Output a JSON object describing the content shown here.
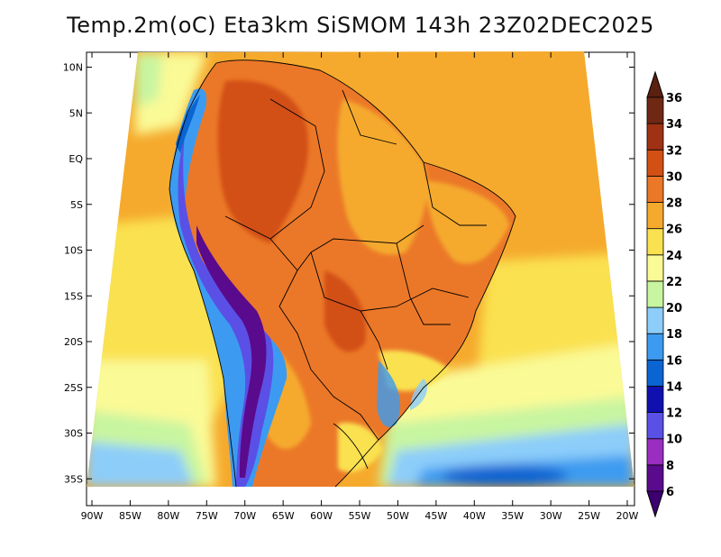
{
  "title": "Temp.2m(oC) Eta3km SiSMOM 143h 23Z02DEC2025",
  "map": {
    "lat_ticks": [
      {
        "label": "10N",
        "lat": 10
      },
      {
        "label": "5N",
        "lat": 5
      },
      {
        "label": "EQ",
        "lat": 0
      },
      {
        "label": "5S",
        "lat": -5
      },
      {
        "label": "10S",
        "lat": -10
      },
      {
        "label": "15S",
        "lat": -15
      },
      {
        "label": "20S",
        "lat": -20
      },
      {
        "label": "25S",
        "lat": -25
      },
      {
        "label": "30S",
        "lat": -30
      },
      {
        "label": "35S",
        "lat": -35
      }
    ],
    "lon_ticks": [
      {
        "label": "90W",
        "lon": -90
      },
      {
        "label": "85W",
        "lon": -85
      },
      {
        "label": "80W",
        "lon": -80
      },
      {
        "label": "75W",
        "lon": -75
      },
      {
        "label": "70W",
        "lon": -70
      },
      {
        "label": "65W",
        "lon": -65
      },
      {
        "label": "60W",
        "lon": -60
      },
      {
        "label": "55W",
        "lon": -55
      },
      {
        "label": "50W",
        "lon": -50
      },
      {
        "label": "45W",
        "lon": -45
      },
      {
        "label": "40W",
        "lon": -40
      },
      {
        "label": "35W",
        "lon": -35
      },
      {
        "label": "30W",
        "lon": -30
      },
      {
        "label": "25W",
        "lon": -25
      },
      {
        "label": "20W",
        "lon": -20
      }
    ],
    "lon_range": [
      -90,
      -20
    ],
    "lat_range": [
      -38,
      12
    ]
  },
  "colorbar": {
    "levels": [
      {
        "label": "6",
        "value": 6
      },
      {
        "label": "8",
        "value": 8
      },
      {
        "label": "10",
        "value": 10
      },
      {
        "label": "12",
        "value": 12
      },
      {
        "label": "14",
        "value": 14
      },
      {
        "label": "16",
        "value": 16
      },
      {
        "label": "18",
        "value": 18
      },
      {
        "label": "20",
        "value": 20
      },
      {
        "label": "22",
        "value": 22
      },
      {
        "label": "24",
        "value": 24
      },
      {
        "label": "26",
        "value": 26
      },
      {
        "label": "28",
        "value": 28
      },
      {
        "label": "30",
        "value": 30
      },
      {
        "label": "32",
        "value": 32
      },
      {
        "label": "34",
        "value": 34
      },
      {
        "label": "36",
        "value": 36
      }
    ],
    "colors": [
      "#5a0a8c",
      "#9a2ec0",
      "#5a50e6",
      "#1010b0",
      "#0a64d2",
      "#3c9bf0",
      "#8ccdfa",
      "#c8f5a0",
      "#fafa96",
      "#fae150",
      "#f5aa2d",
      "#eb7828",
      "#d25014",
      "#a03214",
      "#6e2814"
    ],
    "under_color": "#3c0070",
    "over_color": "#5a2010"
  }
}
